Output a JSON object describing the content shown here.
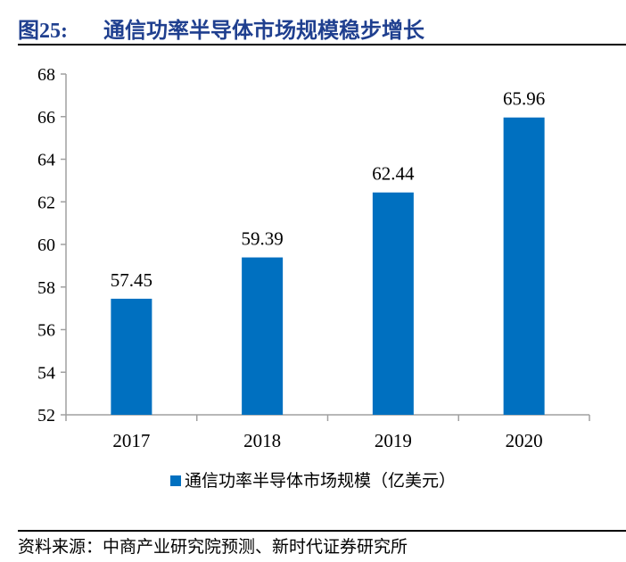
{
  "figure": {
    "label": "图25:",
    "title": "通信功率半导体市场规模稳步增长"
  },
  "source": "资料来源：中商产业研究院预测、新时代证券研究所",
  "chart_data": {
    "type": "bar",
    "categories": [
      "2017",
      "2018",
      "2019",
      "2020"
    ],
    "series": [
      {
        "name": "通信功率半导体市场规模（亿美元）",
        "values": [
          57.45,
          59.39,
          62.44,
          65.96
        ],
        "color": "#0070c0"
      }
    ],
    "data_labels": [
      "57.45",
      "59.39",
      "62.44",
      "65.96"
    ],
    "ylim": [
      52,
      68
    ],
    "yticks": [
      "52",
      "54",
      "56",
      "58",
      "60",
      "62",
      "64",
      "66",
      "68"
    ],
    "grid": false,
    "legend": "bottom"
  }
}
